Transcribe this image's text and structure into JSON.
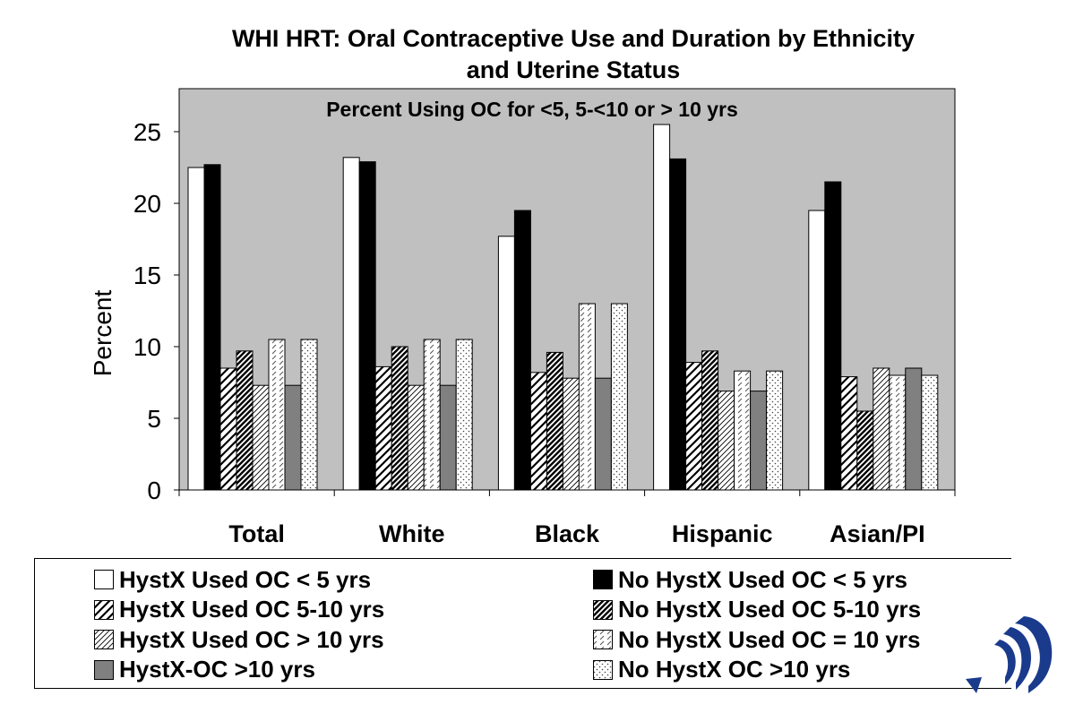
{
  "chart_data": {
    "type": "bar",
    "title": "WHI HRT: Oral Contraceptive Use and Duration by Ethnicity and Uterine Status",
    "subtitle": "Percent Using OC for <5, 5-<10 or > 10 yrs",
    "xlabel": "",
    "ylabel": "Percent",
    "ylim": [
      0,
      28
    ],
    "yticks": [
      0,
      5,
      10,
      15,
      20,
      25
    ],
    "grid": false,
    "legend_position": "bottom",
    "categories": [
      "Total",
      "White",
      "Black",
      "Hispanic",
      "Asian/PI"
    ],
    "series": [
      {
        "name": "HystX Used OC < 5 yrs",
        "pattern": "white",
        "values": [
          22.5,
          23.2,
          17.7,
          25.5,
          19.5
        ]
      },
      {
        "name": "No HystX Used OC < 5 yrs",
        "pattern": "black",
        "values": [
          22.7,
          22.9,
          19.5,
          23.1,
          21.5
        ]
      },
      {
        "name": "HystX Used OC 5-10 yrs",
        "pattern": "diag-sparse",
        "values": [
          8.5,
          8.6,
          8.2,
          8.9,
          7.9
        ]
      },
      {
        "name": "No HystX Used OC 5-10 yrs",
        "pattern": "diag-dense",
        "values": [
          9.7,
          10.0,
          9.6,
          9.7,
          5.5
        ]
      },
      {
        "name": "HystX Used OC > 10 yrs",
        "pattern": "diag-thin",
        "values": [
          7.3,
          7.3,
          7.8,
          6.9,
          8.5
        ]
      },
      {
        "name": "No HystX Used OC = 10 yrs",
        "pattern": "dash",
        "values": [
          10.5,
          10.5,
          13.0,
          8.3,
          8.0
        ]
      },
      {
        "name": "HystX-OC >10 yrs",
        "pattern": "gray",
        "values": [
          7.3,
          7.3,
          7.8,
          6.9,
          8.5
        ]
      },
      {
        "name": "No HystX OC >10 yrs",
        "pattern": "dots",
        "values": [
          10.5,
          10.5,
          13.0,
          8.3,
          8.0
        ]
      }
    ]
  },
  "colors": {
    "plot_background": "#c0c0c0",
    "gray_bar": "#808080",
    "logo_blue": "#1a3a8c"
  },
  "title_line1": "WHI HRT: Oral Contraceptive Use and Duration by Ethnicity",
  "title_line2": "and Uterine Status",
  "logo_icon": "institution-logo-icon"
}
